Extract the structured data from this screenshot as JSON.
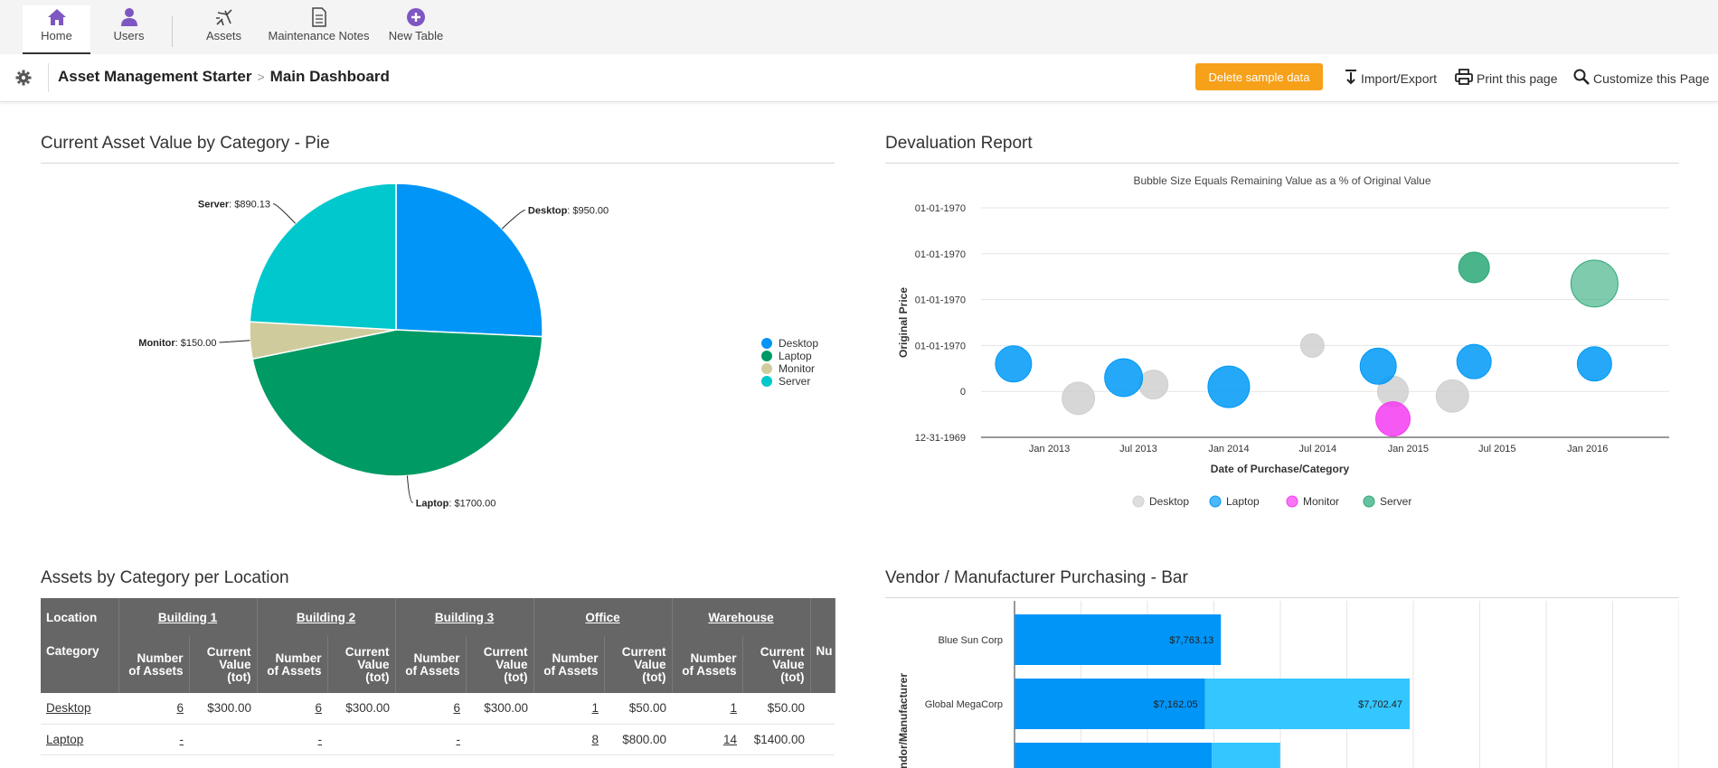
{
  "nav": {
    "items": [
      {
        "label": "Home"
      },
      {
        "label": "Users"
      },
      {
        "label": "Assets"
      },
      {
        "label": "Maintenance Notes"
      },
      {
        "label": "New Table"
      }
    ]
  },
  "breadcrumb": {
    "app": "Asset Management Starter",
    "sep": ">",
    "page": "Main Dashboard"
  },
  "actions": {
    "delete_sample": "Delete sample data",
    "import_export": "Import/Export",
    "print": "Print this page",
    "customize": "Customize this Page"
  },
  "panels": {
    "pie_title": "Current Asset Value by Category - Pie",
    "bubble_title": "Devaluation Report",
    "table_title": "Assets by Category per Location",
    "bar_title": "Vendor / Manufacturer Purchasing - Bar"
  },
  "colors": {
    "desktop": "#0095f7",
    "laptop": "#009a64",
    "monitor": "#cfcb9c",
    "server": "#00c8cc",
    "accent": "#f7a01a",
    "nav_icon": "#7e57c2"
  },
  "chart_data": [
    {
      "type": "pie",
      "title": "Current Asset Value by Category - Pie",
      "slices": [
        {
          "name": "Desktop",
          "value": 950.0,
          "label": "$950.00"
        },
        {
          "name": "Laptop",
          "value": 1700.0,
          "label": "$1700.00"
        },
        {
          "name": "Monitor",
          "value": 150.0,
          "label": "$150.00"
        },
        {
          "name": "Server",
          "value": 890.13,
          "label": "$890.13"
        }
      ],
      "legend": [
        "Desktop",
        "Laptop",
        "Monitor",
        "Server"
      ],
      "legend_position": "right"
    },
    {
      "type": "scatter",
      "title": "Devaluation Report",
      "subtitle": "Bubble Size Equals Remaining Value as a % of Original Value",
      "xlabel": "Date of Purchase/Category",
      "ylabel": "Original Price",
      "x_ticks": [
        "Jan 2013",
        "Jul 2013",
        "Jan 2014",
        "Jul 2014",
        "Jan 2015",
        "Jul 2015",
        "Jan 2016"
      ],
      "y_ticks": [
        "12-31-1969",
        "0",
        "01-01-1970",
        "01-01-1970",
        "01-01-1970",
        "01-01-1970"
      ],
      "legend": [
        "Desktop",
        "Laptop",
        "Monitor",
        "Server"
      ],
      "legend_position": "bottom",
      "series": [
        {
          "name": "Desktop",
          "color": "#d0d0d0",
          "points": [
            {
              "x": "2013-03-01",
              "y": 0.85,
              "r": 18
            },
            {
              "x": "2013-08-01",
              "y": 1.15,
              "r": 16
            },
            {
              "x": "2014-06-20",
              "y": 2.0,
              "r": 13
            },
            {
              "x": "2014-12-01",
              "y": 1.0,
              "r": 17
            },
            {
              "x": "2015-04-01",
              "y": 0.9,
              "r": 18
            }
          ]
        },
        {
          "name": "Laptop",
          "color": "#0099f7",
          "points": [
            {
              "x": "2012-10-20",
              "y": 1.6,
              "r": 20
            },
            {
              "x": "2013-06-01",
              "y": 1.3,
              "r": 21
            },
            {
              "x": "2014-01-01",
              "y": 1.1,
              "r": 23
            },
            {
              "x": "2014-11-01",
              "y": 1.55,
              "r": 20
            },
            {
              "x": "2015-05-15",
              "y": 1.65,
              "r": 19
            },
            {
              "x": "2016-01-15",
              "y": 1.6,
              "r": 19
            }
          ]
        },
        {
          "name": "Monitor",
          "color": "#f53bf2",
          "points": [
            {
              "x": "2014-12-01",
              "y": 0.4,
              "r": 19
            }
          ]
        },
        {
          "name": "Server",
          "color": "#2aa876",
          "points": [
            {
              "x": "2015-05-15",
              "y": 3.7,
              "r": 17
            },
            {
              "x": "2016-01-15",
              "y": 3.35,
              "r": 26
            }
          ]
        }
      ]
    },
    {
      "type": "bar",
      "title": "Vendor / Manufacturer Purchasing - Bar",
      "ylabel": "Vendor/Manufacturer",
      "categories": [
        "Blue Sun Corp",
        "Global MegaCorp",
        ""
      ],
      "series": [
        {
          "values": [
            7763.13,
            7162.05,
            7418.87
          ],
          "labels": [
            "$7,763.13",
            "$7,162.05",
            ""
          ],
          "color": "#0095f7"
        },
        {
          "values": [
            0,
            7702.47,
            2574.18
          ],
          "labels": [
            "",
            "$7,702.47",
            ""
          ],
          "color": "#33c6ff"
        }
      ],
      "xlim": [
        0,
        25000
      ]
    }
  ],
  "table": {
    "row_label_header": "Location",
    "category_header": "Category",
    "locations": [
      "Building 1",
      "Building 2",
      "Building 3",
      "Office",
      "Warehouse"
    ],
    "sub_headers": {
      "count": "Number of Assets",
      "value": "Current Value (tot)",
      "partial": "Nu"
    },
    "rows": [
      {
        "category": "Desktop",
        "cells": [
          [
            "6",
            "$300.00"
          ],
          [
            "6",
            "$300.00"
          ],
          [
            "6",
            "$300.00"
          ],
          [
            "1",
            "$50.00"
          ],
          [
            "1",
            "$50.00"
          ]
        ]
      },
      {
        "category": "Laptop",
        "cells": [
          [
            "-",
            ""
          ],
          [
            "-",
            ""
          ],
          [
            "-",
            ""
          ],
          [
            "8",
            "$800.00"
          ],
          [
            "14",
            "$1400.00"
          ]
        ]
      }
    ]
  }
}
